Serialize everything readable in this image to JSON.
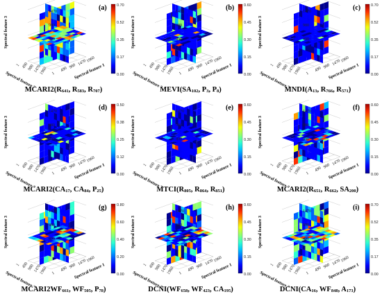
{
  "panels": [
    {
      "label": "(a)",
      "caption": [
        [
          "MCARI2(R",
          ""
        ],
        [
          "641",
          "sub"
        ],
        [
          ", R",
          ""
        ],
        [
          "583",
          "sub"
        ],
        [
          ", R",
          ""
        ],
        [
          "707",
          "sub"
        ],
        [
          ")",
          ""
        ]
      ],
      "cbar": [
        "0.70",
        "0.52",
        "0.35",
        "0.17",
        "0.00"
      ],
      "density": 0.85
    },
    {
      "label": "(b)",
      "caption": [
        [
          "MEVI(SA",
          ""
        ],
        [
          "102",
          "sub"
        ],
        [
          ", P",
          ""
        ],
        [
          "3",
          "sub"
        ],
        [
          ", P",
          ""
        ],
        [
          "8",
          "sub"
        ],
        [
          ")",
          ""
        ]
      ],
      "cbar": [
        "0.60",
        "0.45",
        "0.30",
        "0.15",
        "0.00"
      ],
      "density": 0.35
    },
    {
      "label": "(c)",
      "caption": [
        [
          "MNDI(A",
          ""
        ],
        [
          "13",
          "sub"
        ],
        [
          ", R",
          ""
        ],
        [
          "766",
          "sub"
        ],
        [
          ", R",
          ""
        ],
        [
          "571",
          "sub"
        ],
        [
          ")",
          ""
        ]
      ],
      "cbar": [
        "0.70",
        "0.52",
        "0.35",
        "0.17",
        "0.00"
      ],
      "density": 0.1
    },
    {
      "label": "(d)",
      "caption": [
        [
          "MCARI2(CA",
          ""
        ],
        [
          "17",
          "sub"
        ],
        [
          ", CA",
          ""
        ],
        [
          "84",
          "sub"
        ],
        [
          ", P",
          ""
        ],
        [
          "25",
          "sub"
        ],
        [
          ")",
          ""
        ]
      ],
      "cbar": [
        "0.50",
        "0.38",
        "0.25",
        "0.12",
        "0.00"
      ],
      "density": 0.15
    },
    {
      "label": "(e)",
      "caption": [
        [
          "MTCI(R",
          ""
        ],
        [
          "805",
          "sub"
        ],
        [
          ", R",
          ""
        ],
        [
          "864",
          "sub"
        ],
        [
          ", R",
          ""
        ],
        [
          "851",
          "sub"
        ],
        [
          ")",
          ""
        ]
      ],
      "cbar": [
        "0.60",
        "0.45",
        "0.30",
        "0.15",
        "0.00"
      ],
      "density": 0.12
    },
    {
      "label": "(f)",
      "caption": [
        [
          "MCARI2(R",
          ""
        ],
        [
          "651",
          "sub"
        ],
        [
          ", R",
          ""
        ],
        [
          "662",
          "sub"
        ],
        [
          ", SA",
          ""
        ],
        [
          "200",
          "sub"
        ],
        [
          ")",
          ""
        ]
      ],
      "cbar": [
        "0.60",
        "0.45",
        "0.30",
        "0.15",
        "0.00"
      ],
      "density": 0.3
    },
    {
      "label": "(g)",
      "caption": [
        [
          "MCARI2WF",
          ""
        ],
        [
          "661",
          "sub"
        ],
        [
          ", WF",
          ""
        ],
        [
          "505",
          "sub"
        ],
        [
          ", P",
          ""
        ],
        [
          "78",
          "sub"
        ],
        [
          ")",
          ""
        ]
      ],
      "cbar": [
        "0.80",
        "0.60",
        "0.40",
        "0.20",
        "0.00"
      ],
      "density": 0.45
    },
    {
      "label": "(h)",
      "caption": [
        [
          "DCNI(WF",
          ""
        ],
        [
          "658",
          "sub"
        ],
        [
          ", WF",
          ""
        ],
        [
          "423",
          "sub"
        ],
        [
          ", CA",
          ""
        ],
        [
          "195",
          "sub"
        ],
        [
          ")",
          ""
        ]
      ],
      "cbar": [
        "0.60",
        "0.45",
        "0.30",
        "0.15",
        "0.00"
      ],
      "density": 0.55
    },
    {
      "label": "(i)",
      "caption": [
        [
          "DCNI(CA",
          ""
        ],
        [
          "16",
          "sub"
        ],
        [
          ", WF",
          ""
        ],
        [
          "848",
          "sub"
        ],
        [
          ", A",
          ""
        ],
        [
          "173",
          "sub"
        ],
        [
          ")",
          ""
        ]
      ],
      "cbar": [
        "0.70",
        "0.52",
        "0.35",
        "0.17",
        "0.00"
      ],
      "density": 0.8
    }
  ],
  "axes": {
    "z_title": "Spectral feature 3",
    "x_title": "Spectral feature 2",
    "y_title": "Spectral feature 1",
    "z_ticks": [
      "1960",
      "1470",
      "980",
      "490"
    ],
    "x_ticks": [
      "1960",
      "1470",
      "980",
      "490",
      "1"
    ],
    "y_ticks": [
      "1",
      "490",
      "980",
      "1470",
      "1960"
    ]
  },
  "colormap": [
    "#00008f",
    "#0000ff",
    "#0060ff",
    "#00c0ff",
    "#30ffcf",
    "#90ff6f",
    "#f0ff0f",
    "#ffa000",
    "#ff3000",
    "#a00000"
  ]
}
